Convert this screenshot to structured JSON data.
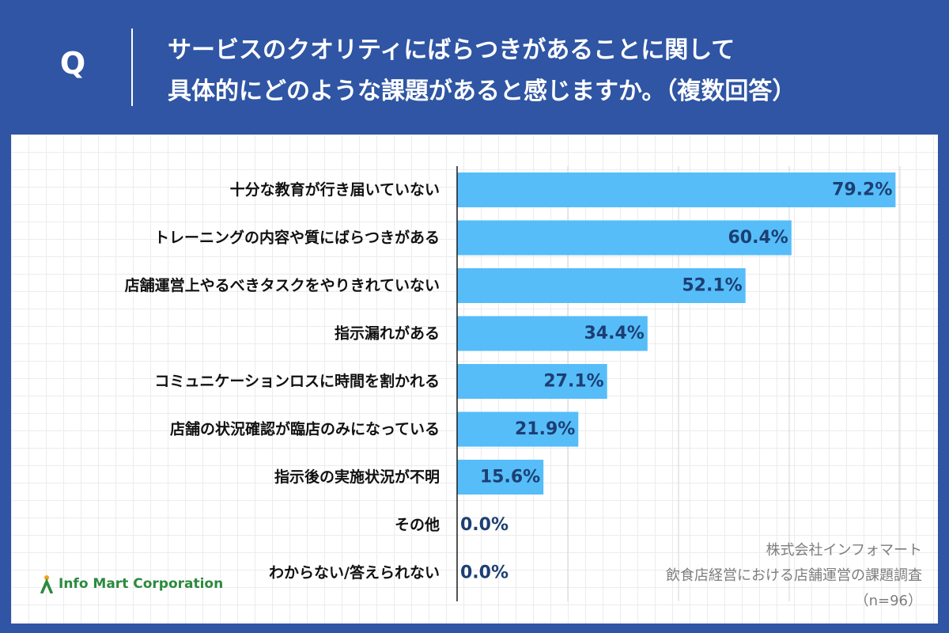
{
  "header": {
    "q_mark": "Q",
    "question_line1": "サービスのクオリティにばらつきがあることに関して",
    "question_line2": "具体的にどのような課題があると感じますか。（複数回答）"
  },
  "chart_data": {
    "type": "bar",
    "orientation": "horizontal",
    "categories": [
      "十分な教育が行き届いていない",
      "トレーニングの内容や質にばらつきがある",
      "店舗運営上やるべきタスクをやりきれていない",
      "指示漏れがある",
      "コミュニケーションロスに時間を割かれる",
      "店舗の状況確認が臨店のみになっている",
      "指示後の実施状況が不明",
      "その他",
      "わからない/答えられない"
    ],
    "values": [
      79.2,
      60.4,
      52.1,
      34.4,
      27.1,
      21.9,
      15.6,
      0.0,
      0.0
    ],
    "value_labels": [
      "79.2%",
      "60.4%",
      "52.1%",
      "34.4%",
      "27.1%",
      "21.9%",
      "15.6%",
      "0.0%",
      "0.0%"
    ],
    "xlim": [
      0,
      80
    ],
    "unit": "%",
    "grid": true,
    "bar_color": "#56bdf9",
    "value_label_color": "#1c3f72"
  },
  "source": {
    "company": "株式会社インフォマート",
    "survey": "飲食店経営における店舗運営の課題調査",
    "sample": "（n=96）"
  },
  "logo": {
    "icon": "info-mart-logo-icon",
    "text": "Info Mart Corporation"
  },
  "colors": {
    "header_bg": "#2f55a4",
    "panel_bg": "#ffffff",
    "logo_green": "#2b8a3e"
  }
}
